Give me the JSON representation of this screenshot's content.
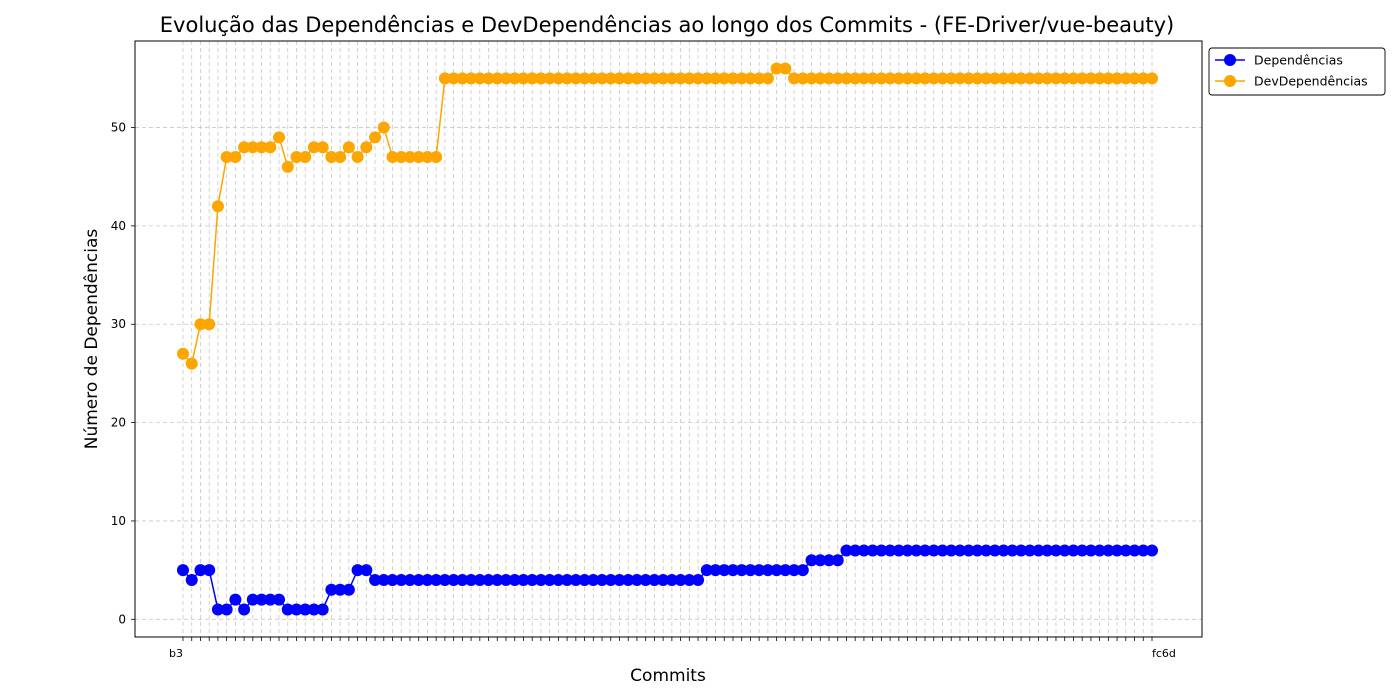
{
  "chart_data": {
    "type": "line",
    "title": "Evolução das Dependências e DevDependências ao longo dos Commits - (FE-Driver/vue-beauty)",
    "xlabel": "Commits",
    "ylabel": "Número de Dependências",
    "ylim": [
      -1.8,
      58.8
    ],
    "yticks": [
      0,
      10,
      20,
      30,
      40,
      50
    ],
    "grid": true,
    "legend_position": "outside-top-right",
    "x_count": 112,
    "xtick_labels_visible": [
      "b3",
      "fc6d"
    ],
    "series": [
      {
        "name": "Dependências",
        "color": "#0000ff",
        "marker": "circle",
        "values": [
          5,
          4,
          5,
          5,
          1,
          1,
          2,
          1,
          2,
          2,
          2,
          2,
          1,
          1,
          1,
          1,
          1,
          3,
          3,
          3,
          5,
          5,
          4,
          4,
          4,
          4,
          4,
          4,
          4,
          4,
          4,
          4,
          4,
          4,
          4,
          4,
          4,
          4,
          4,
          4,
          4,
          4,
          4,
          4,
          4,
          4,
          4,
          4,
          4,
          4,
          4,
          4,
          4,
          4,
          4,
          4,
          4,
          4,
          4,
          4,
          5,
          5,
          5,
          5,
          5,
          5,
          5,
          5,
          5,
          5,
          5,
          5,
          6,
          6,
          6,
          6,
          7,
          7,
          7,
          7,
          7,
          7,
          7,
          7,
          7,
          7,
          7,
          7,
          7,
          7,
          7,
          7,
          7,
          7,
          7,
          7,
          7,
          7,
          7,
          7,
          7,
          7,
          7,
          7,
          7,
          7,
          7,
          7,
          7,
          7,
          7,
          7
        ]
      },
      {
        "name": "DevDependências",
        "color": "#ffa500",
        "marker": "circle",
        "values": [
          27,
          26,
          30,
          30,
          42,
          47,
          47,
          48,
          48,
          48,
          48,
          49,
          46,
          47,
          47,
          48,
          48,
          47,
          47,
          48,
          47,
          48,
          49,
          50,
          47,
          47,
          47,
          47,
          47,
          47,
          55,
          55,
          55,
          55,
          55,
          55,
          55,
          55,
          55,
          55,
          55,
          55,
          55,
          55,
          55,
          55,
          55,
          55,
          55,
          55,
          55,
          55,
          55,
          55,
          55,
          55,
          55,
          55,
          55,
          55,
          55,
          55,
          55,
          55,
          55,
          55,
          55,
          55,
          56,
          56,
          55,
          55,
          55,
          55,
          55,
          55,
          55,
          55,
          55,
          55,
          55,
          55,
          55,
          55,
          55,
          55,
          55,
          55,
          55,
          55,
          55,
          55,
          55,
          55,
          55,
          55,
          55,
          55,
          55,
          55,
          55,
          55,
          55,
          55,
          55,
          55,
          55,
          55,
          55,
          55,
          55,
          55
        ]
      }
    ]
  }
}
